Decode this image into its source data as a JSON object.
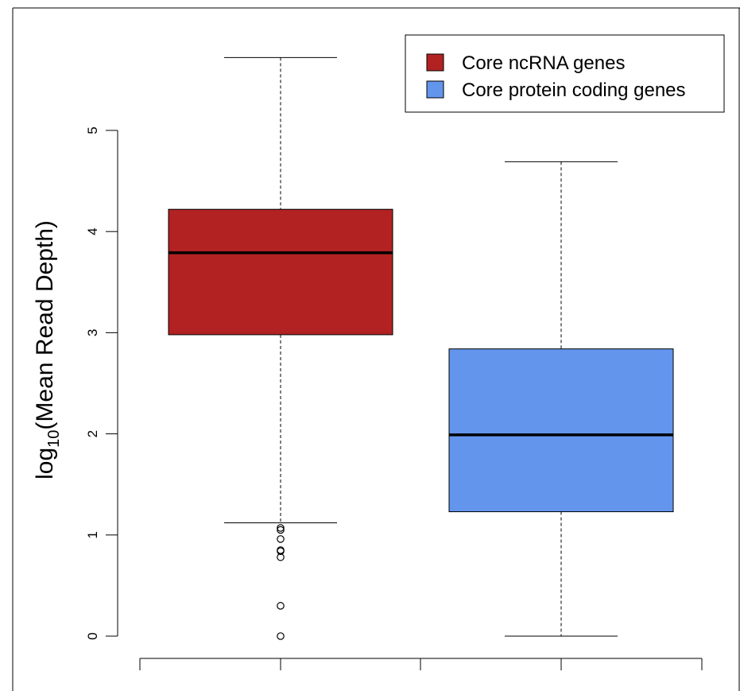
{
  "chart_data": {
    "type": "boxplot",
    "title": "",
    "ylabel_main": "log",
    "ylabel_sub": "10",
    "ylabel_rest": "(Mean Read Depth)",
    "xlabel": "",
    "ylim": [
      0,
      5.75
    ],
    "y_ticks": [
      "0",
      "1",
      "2",
      "3",
      "4",
      "5"
    ],
    "legend_position": "top-right",
    "series": [
      {
        "name": "Core ncRNA genes",
        "color": "#b22222",
        "whisker_low": 1.12,
        "q1": 2.98,
        "median": 3.79,
        "q3": 4.22,
        "whisker_high": 5.72,
        "outliers": [
          1.07,
          1.05,
          0.96,
          0.85,
          0.84,
          0.78,
          0.3,
          0.0
        ]
      },
      {
        "name": "Core protein coding genes",
        "color": "#6495ed",
        "whisker_low": 0.0,
        "q1": 1.23,
        "median": 1.99,
        "q3": 2.84,
        "whisker_high": 4.69,
        "outliers": []
      }
    ]
  }
}
